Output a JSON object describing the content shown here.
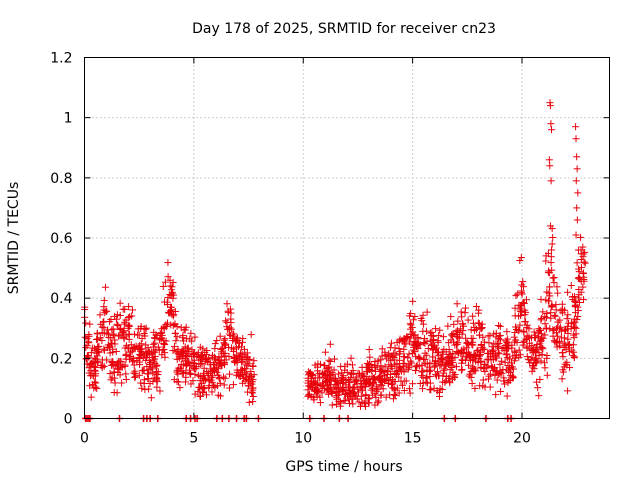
{
  "chart_data": {
    "type": "scatter",
    "title": "Day 178 of 2025, SRMTID for receiver cn23",
    "xlabel": "GPS time / hours",
    "ylabel": "SRMTID / TECUs",
    "xlim": [
      0,
      24
    ],
    "ylim": [
      0,
      1.2
    ],
    "x_ticks": [
      0,
      5,
      10,
      15,
      20
    ],
    "x_tick_labels": [
      "0",
      "5",
      "10",
      "15",
      "20"
    ],
    "y_ticks": [
      0,
      0.2,
      0.4,
      0.6,
      0.8,
      1.0,
      1.2
    ],
    "y_tick_labels": [
      "0",
      "0.2",
      "0.4",
      "0.6",
      "0.8",
      "1",
      "1.2"
    ],
    "grid": true,
    "marker": "+",
    "color": "#e8000b",
    "series": [
      {
        "name": "SRMTID",
        "envelope": [
          [
            0.0,
            0.3,
            0.05
          ],
          [
            0.3,
            0.18,
            0.05
          ],
          [
            0.5,
            0.16,
            0.04
          ],
          [
            0.8,
            0.32,
            0.07
          ],
          [
            1.0,
            0.3,
            0.07
          ],
          [
            1.3,
            0.2,
            0.05
          ],
          [
            1.6,
            0.24,
            0.06
          ],
          [
            2.0,
            0.26,
            0.06
          ],
          [
            2.3,
            0.2,
            0.05
          ],
          [
            2.6,
            0.22,
            0.05
          ],
          [
            2.9,
            0.2,
            0.05
          ],
          [
            3.2,
            0.18,
            0.05
          ],
          [
            3.5,
            0.22,
            0.05
          ],
          [
            3.8,
            0.4,
            0.07
          ],
          [
            4.0,
            0.38,
            0.07
          ],
          [
            4.2,
            0.22,
            0.05
          ],
          [
            4.6,
            0.2,
            0.05
          ],
          [
            5.0,
            0.18,
            0.05
          ],
          [
            5.4,
            0.14,
            0.05
          ],
          [
            5.8,
            0.16,
            0.05
          ],
          [
            6.2,
            0.17,
            0.05
          ],
          [
            6.6,
            0.3,
            0.07
          ],
          [
            6.9,
            0.2,
            0.05
          ],
          [
            7.3,
            0.18,
            0.05
          ],
          [
            7.6,
            0.15,
            0.05
          ],
          [
            7.8,
            0.1,
            0.03
          ],
          [
            10.2,
            0.11,
            0.03
          ],
          [
            10.8,
            0.12,
            0.03
          ],
          [
            11.2,
            0.14,
            0.04
          ],
          [
            11.6,
            0.09,
            0.03
          ],
          [
            12.0,
            0.11,
            0.04
          ],
          [
            12.5,
            0.1,
            0.04
          ],
          [
            13.0,
            0.13,
            0.04
          ],
          [
            13.5,
            0.14,
            0.04
          ],
          [
            14.0,
            0.16,
            0.05
          ],
          [
            14.5,
            0.2,
            0.06
          ],
          [
            15.0,
            0.24,
            0.06
          ],
          [
            15.5,
            0.22,
            0.06
          ],
          [
            16.0,
            0.2,
            0.06
          ],
          [
            16.5,
            0.18,
            0.05
          ],
          [
            17.0,
            0.26,
            0.06
          ],
          [
            17.5,
            0.22,
            0.06
          ],
          [
            18.0,
            0.24,
            0.06
          ],
          [
            18.5,
            0.2,
            0.06
          ],
          [
            19.0,
            0.22,
            0.06
          ],
          [
            19.5,
            0.18,
            0.05
          ],
          [
            20.0,
            0.4,
            0.08
          ],
          [
            20.3,
            0.2,
            0.05
          ],
          [
            20.7,
            0.22,
            0.06
          ],
          [
            21.0,
            0.3,
            0.08
          ],
          [
            21.3,
            0.45,
            0.12
          ],
          [
            21.6,
            0.3,
            0.08
          ],
          [
            22.0,
            0.26,
            0.07
          ],
          [
            22.4,
            0.3,
            0.08
          ],
          [
            22.7,
            0.5,
            0.05
          ],
          [
            22.9,
            0.48,
            0.04
          ]
        ],
        "peaks": [
          [
            21.28,
            1.05
          ],
          [
            21.3,
            1.04
          ],
          [
            21.32,
            0.98
          ],
          [
            21.35,
            0.96
          ],
          [
            21.25,
            0.86
          ],
          [
            21.27,
            0.84
          ],
          [
            21.33,
            0.79
          ],
          [
            21.3,
            0.64
          ],
          [
            21.38,
            0.58
          ],
          [
            22.45,
            0.97
          ],
          [
            22.47,
            0.93
          ],
          [
            22.5,
            0.87
          ],
          [
            22.52,
            0.83
          ],
          [
            22.48,
            0.79
          ],
          [
            22.55,
            0.75
          ],
          [
            22.5,
            0.7
          ],
          [
            22.53,
            0.66
          ],
          [
            22.47,
            0.61
          ],
          [
            22.58,
            0.56
          ]
        ],
        "zero_points": [
          0.05,
          0.12,
          0.2,
          0.25,
          1.6,
          2.7,
          2.85,
          3.0,
          3.35,
          4.65,
          4.85,
          5.05,
          5.15,
          6.05,
          6.3,
          6.6,
          6.95,
          7.3,
          7.4,
          7.95,
          10.3,
          10.95,
          11.65,
          12.05,
          16.45,
          16.95,
          18.35,
          19.35,
          19.5
        ],
        "gap_hours": [
          7.9,
          10.1
        ]
      }
    ]
  }
}
